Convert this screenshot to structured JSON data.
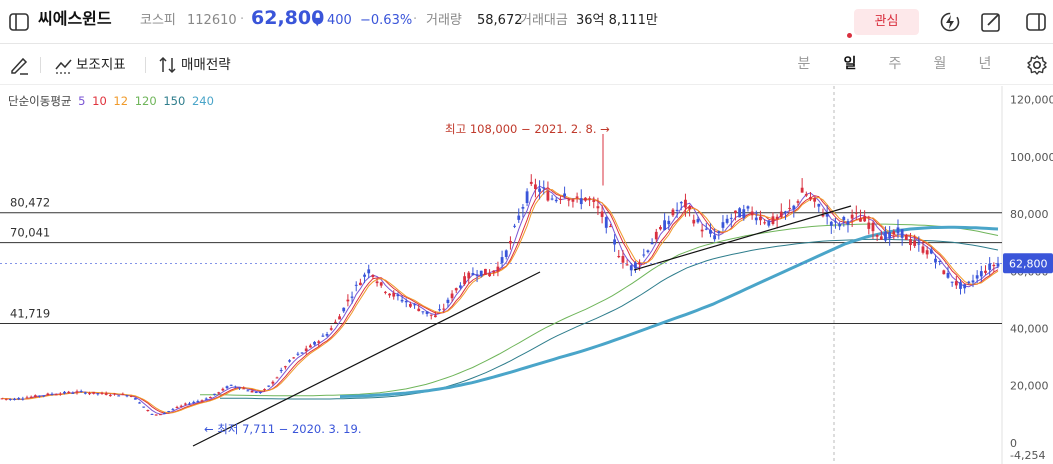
{
  "header": {
    "stock_name": "씨에스윈드",
    "market": "코스피",
    "code": "112610",
    "separator": "·",
    "price": "62,800",
    "change_arrow": "▼",
    "change": "400",
    "change_pct": "−0.63%",
    "volume_label": "거래량",
    "volume_value": "58,672",
    "amount_label": "거래대금",
    "amount_value": "36억 8,111만",
    "favorite_label": "관심"
  },
  "toolbar": {
    "indicators_label": "보조지표",
    "strategy_label": "매매전략",
    "periods": [
      "분",
      "일",
      "주",
      "월",
      "년"
    ],
    "active_period": "일"
  },
  "legend": {
    "title": "단순이동평균",
    "items": [
      {
        "label": "5",
        "color": "#7b55d4"
      },
      {
        "label": "10",
        "color": "#e0323c"
      },
      {
        "label": "12",
        "color": "#f09a2a"
      },
      {
        "label": "120",
        "color": "#6fb55a"
      },
      {
        "label": "150",
        "color": "#2e7d8c"
      },
      {
        "label": "240",
        "color": "#4aa5c9"
      }
    ]
  },
  "chart_data": {
    "type": "candlestick",
    "y_axis_ticks": [
      "120,000",
      "100,000",
      "80,000",
      "60,000",
      "40,000",
      "20,000",
      "0",
      "-4,254"
    ],
    "ylim": [
      -4254,
      122000
    ],
    "horizontal_lines": [
      {
        "label": "80,472",
        "value": 80472
      },
      {
        "label": "70,041",
        "value": 70041
      },
      {
        "label": "41,719",
        "value": 41719
      }
    ],
    "current_price_label": "62,800",
    "current_price": 62800,
    "annotations": {
      "high": "최고 108,000 − 2021. 2. 8. →",
      "low": "← 최저 7,711 − 2020. 3. 19."
    },
    "price_path": [
      15500,
      15200,
      15800,
      16200,
      16800,
      17200,
      17500,
      17800,
      17500,
      17200,
      17000,
      16800,
      16500,
      13000,
      9500,
      10500,
      12000,
      13500,
      14500,
      15500,
      17500,
      20000,
      19500,
      18000,
      17500,
      21000,
      26000,
      30000,
      32000,
      35000,
      38000,
      43000,
      50000,
      56000,
      61000,
      55000,
      52000,
      50000,
      48000,
      46000,
      44000,
      48000,
      54000,
      58000,
      60000,
      59000,
      62000,
      70000,
      82000,
      90000,
      88000,
      85000,
      88000,
      84000,
      86000,
      82000,
      76000,
      66000,
      61000,
      64000,
      70000,
      75000,
      80000,
      84000,
      78000,
      74000,
      72000,
      78000,
      80000,
      81000,
      79000,
      77000,
      79000,
      82000,
      88000,
      84000,
      80000,
      76000,
      78000,
      79000,
      77000,
      73000,
      72000,
      74000,
      70000,
      68000,
      66000,
      60000,
      56000,
      54000,
      58000,
      61000,
      62800
    ],
    "ma120_path": [
      16800,
      16800,
      16600,
      16500,
      16500,
      16500,
      16700,
      17000,
      17600,
      18800,
      20600,
      23200,
      26500,
      30500,
      35000,
      39600,
      43500,
      47000,
      51000,
      56000,
      61500,
      65800,
      68800,
      70800,
      72500,
      73800,
      74900,
      75800,
      76200,
      76500,
      76500,
      76300,
      76000,
      75400,
      74200,
      72500
    ],
    "ma240_path": [
      16200,
      16400,
      16800,
      17400,
      18200,
      19400,
      21000,
      23000,
      25200,
      27500,
      29800,
      32000,
      34500,
      37200,
      40000,
      42800,
      45500,
      48500,
      52000,
      55500,
      59000,
      62500,
      66000,
      69500,
      72000,
      73800,
      74800,
      75300,
      75400,
      75200,
      74800
    ]
  }
}
